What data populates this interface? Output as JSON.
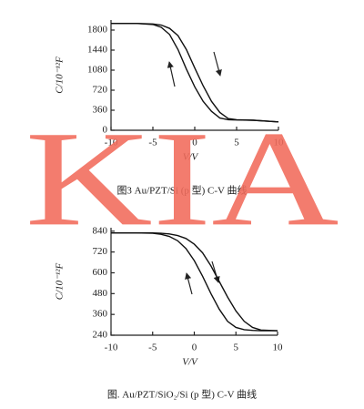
{
  "chart_data": [
    {
      "type": "line",
      "caption": "图3  Au/PZT/Si (p 型) C-V 曲线",
      "x_label": "V/V",
      "y_label": "C/10⁻¹²F",
      "xlim": [
        -10,
        10
      ],
      "ylim": [
        0,
        1980
      ],
      "xticks": [
        -10,
        -5,
        0,
        5,
        10
      ],
      "yticks": [
        0,
        360,
        720,
        1080,
        1440,
        1800
      ],
      "x": [
        -10,
        -7,
        -5,
        -4,
        -3,
        -2,
        -1,
        0,
        1,
        2,
        3,
        4,
        5,
        7,
        10
      ],
      "series": [
        {
          "color": "#111111",
          "values": [
            1920,
            1920,
            1900,
            1850,
            1720,
            1450,
            1100,
            780,
            520,
            340,
            220,
            190,
            185,
            180,
            150
          ]
        },
        {
          "color": "#111111",
          "values": [
            1920,
            1920,
            1910,
            1890,
            1830,
            1700,
            1450,
            1120,
            800,
            520,
            320,
            210,
            190,
            180,
            150
          ]
        }
      ]
    },
    {
      "type": "line",
      "caption": "图.  Au/PZT/SiO₂/Si (p 型) C-V 曲线",
      "x_label": "V/V",
      "y_label": "C/10⁻¹²F",
      "xlim": [
        -10,
        10
      ],
      "ylim": [
        240,
        860
      ],
      "xticks": [
        -10,
        -5,
        0,
        5,
        10
      ],
      "yticks": [
        240,
        360,
        480,
        600,
        720,
        840
      ],
      "x": [
        -10,
        -7,
        -5,
        -4,
        -3,
        -2,
        -1,
        0,
        1,
        2,
        3,
        4,
        5,
        6,
        7,
        8,
        10
      ],
      "series": [
        {
          "color": "#111111",
          "values": [
            830,
            830,
            828,
            822,
            810,
            785,
            740,
            670,
            580,
            480,
            390,
            320,
            285,
            272,
            268,
            266,
            266
          ]
        },
        {
          "color": "#111111",
          "values": [
            830,
            830,
            830,
            828,
            824,
            815,
            798,
            765,
            715,
            640,
            550,
            460,
            380,
            320,
            285,
            270,
            266
          ]
        }
      ]
    }
  ],
  "watermark": "KIA"
}
